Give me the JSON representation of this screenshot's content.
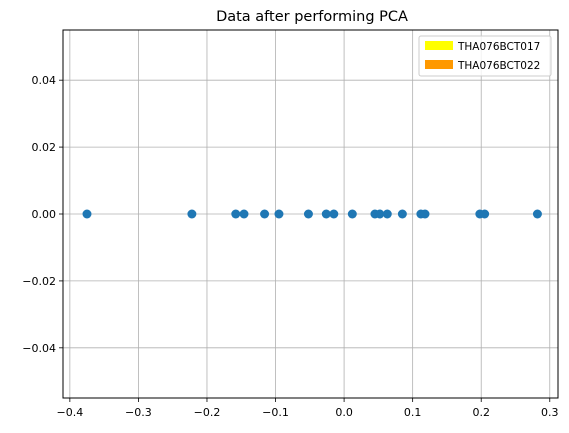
{
  "chart_data": {
    "type": "scatter",
    "title": "Data after performing PCA",
    "xlabel": "",
    "ylabel": "",
    "xlim": [
      -0.41,
      0.312
    ],
    "ylim": [
      -0.055,
      0.055
    ],
    "xticks": [
      -0.4,
      -0.3,
      -0.2,
      -0.1,
      0.0,
      0.1,
      0.2,
      0.3
    ],
    "xtick_labels": [
      "−0.4",
      "−0.3",
      "−0.2",
      "−0.1",
      "0.0",
      "0.1",
      "0.2",
      "0.3"
    ],
    "yticks": [
      -0.04,
      -0.02,
      0.0,
      0.02,
      0.04
    ],
    "ytick_labels": [
      "−0.04",
      "−0.02",
      "0.00",
      "0.02",
      "0.04"
    ],
    "grid": true,
    "legend_position": "top-right",
    "legend": [
      {
        "label": "THA076BCT017",
        "color": "#ffff00"
      },
      {
        "label": "THA076BCT022",
        "color": "#ff9900"
      }
    ],
    "marker_color": "#1f77b4",
    "x": [
      -0.375,
      -0.222,
      -0.158,
      -0.146,
      -0.116,
      -0.095,
      -0.052,
      -0.026,
      -0.015,
      0.012,
      0.045,
      0.052,
      0.063,
      0.085,
      0.112,
      0.118,
      0.198,
      0.205,
      0.282
    ],
    "y": [
      0,
      0,
      0,
      0,
      0,
      0,
      0,
      0,
      0,
      0,
      0,
      0,
      0,
      0,
      0,
      0,
      0,
      0,
      0
    ]
  }
}
